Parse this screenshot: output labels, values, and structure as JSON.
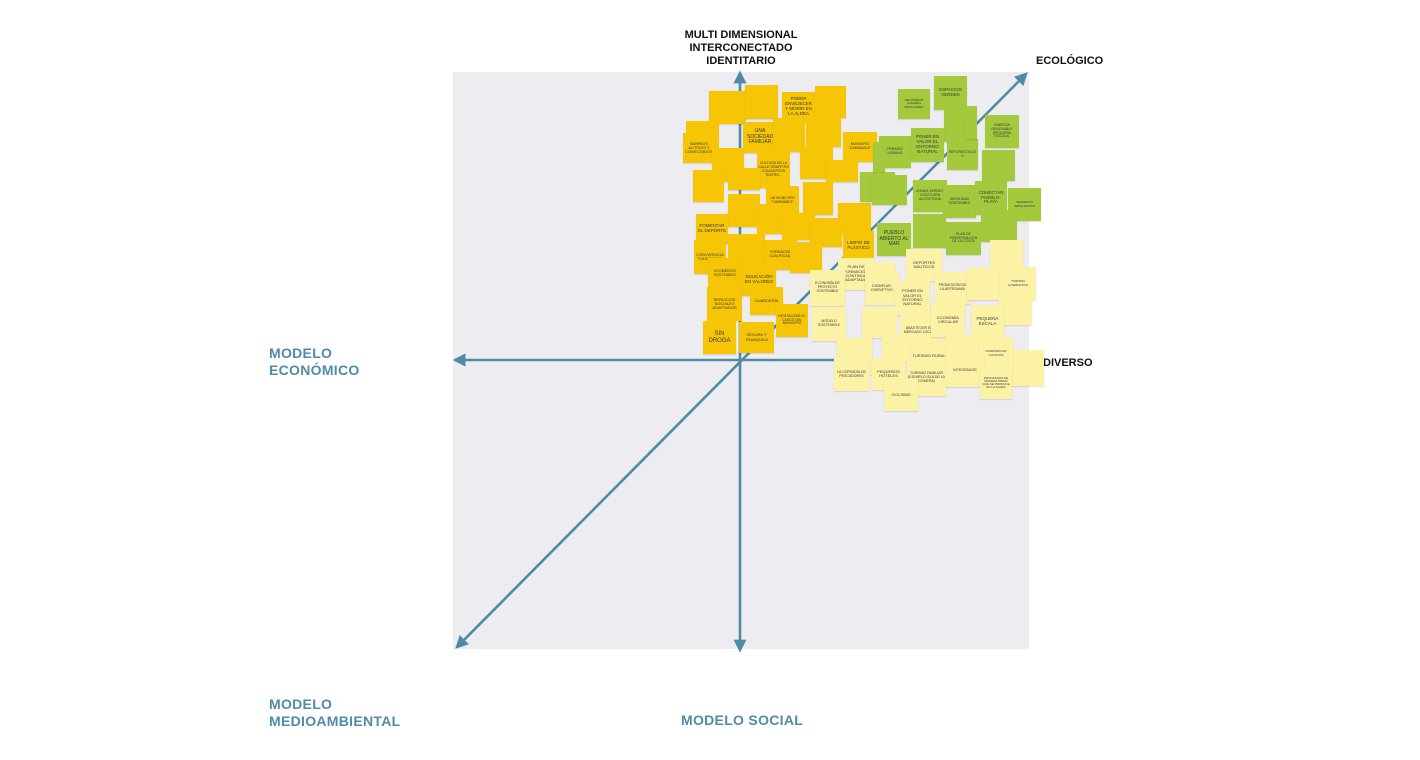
{
  "axes": {
    "top": [
      "MULTI DIMENSIONAL",
      "INTERCONECTADO",
      "IDENTITARIO"
    ],
    "top_right": "ECOLÓGICO",
    "right": "DIVERSO",
    "left": [
      "MODELO",
      "ECONÓMICO"
    ],
    "bottom_left": [
      "MODELO",
      "MEDIOAMBIENTAL"
    ],
    "bottom": "MODELO SOCIAL"
  },
  "colors": {
    "axis": "#4f8ba7",
    "yellow_note": "#f6c506",
    "green_note": "#a4c93d",
    "pale_note": "#fbf2a6",
    "board": "#ededf1"
  },
  "notes": {
    "y01": "",
    "y02": "",
    "y03": "PODER ENVEJECER Y MORIR EN LA ALDEA",
    "y04": "",
    "y05": "",
    "y06": "UNA SOCIEDAD FAMILIAR",
    "y07": "",
    "y08": "",
    "y09": "BARRIOS ACTIVOS Y CONECTADOS",
    "y10": "",
    "y11": "",
    "y12": "MUNICIPIO \"CAMINABLE\"",
    "y13": "CULTURA EN LA CALLE GRAFFITIS CONCIERTOS TEATRO...",
    "y14": "",
    "y15": "",
    "y16": "",
    "y17": "",
    "y18": "UN MUNICIPIO \"CAMINABLE\"",
    "y19": "",
    "y20": "",
    "y21": "",
    "y22": "FOMENTAR EL DEPORTE",
    "y23": "",
    "y24": "",
    "y25": "CONVIVENCIA TOLERANCIA",
    "y26": "",
    "y27": "FORMACIÓN CUALIFICADA",
    "y28": "",
    "y29": "ECOMERCIO SOSTENIBLE",
    "y30": "EDUCACIÓN EN VALORES",
    "y31": "SERVICIOS SOCIALES ADAPTADOS",
    "y32": "GUARDERÍA",
    "y33": "REVITALIZAR EL CASCO DEL MUNICIPIO",
    "y34": "SIN DROGA",
    "y35": "SEGURA Y TRANQUILA",
    "y36": "LIMPIO DE PLÁSTICO",
    "g01": "ESPACIOS VERDES",
    "g02": "RECUPERAR LUGARES SINGULARES",
    "g03": "",
    "g04": "ENERGÍA RENOVABLE (PEQUEÑA ESCALA)",
    "g05": "PONER EN VALOR EL ENTORNO NATURAL",
    "g06": "PARAÍSO URBANO",
    "g07": "",
    "g08": "REFORESTACIÓN",
    "g09": "",
    "g10": "",
    "g11": "",
    "g12": "ZONAS VERDES CON FLORA AUTÓCTONA",
    "g13": "MOVILIDAD SOSTENIBLE",
    "g14": "CONECTAR PUEBLO-PLAYA",
    "g15": "SENDEROS SEÑALIZADOS",
    "g16": "",
    "g17": "PUEBLO ABIERTO AL MAR",
    "g18": "",
    "g19": "PLAN DE PRESERVACIÓN DE LA COSTA",
    "g20": "",
    "p01": "",
    "p02": "PLAN DE FORMACIÓN CONTINUA ADAPTADO",
    "p03": "ECONOMÍA DE PROYECTO SOSTENIBLE",
    "p04": "DEPORTES NÁUTICOS",
    "p05": "",
    "p06": "EJEMPLAR, DISRUPTIVO",
    "p07": "PROMOCIÓN DE LA ARTESANÍA",
    "p08": "",
    "p09": "TURISMO ALTERNATIVO",
    "p10": "PONER EN VALOR EL ENTORNO NATURAL",
    "p11": "",
    "p12": "MODELO SOSTENIBLE",
    "p13": "",
    "p14": "ABASTECER EL MERCADO LOCAL",
    "p15": "ECONOMÍA CIRCULAR",
    "p16": "PEQUEÑA ESCALA",
    "p17": "",
    "p18": "",
    "p19": "TURISMO RURAL",
    "p20": "",
    "p21": "",
    "p22": "DIVERSIFICAR CULTIVOS",
    "p23": "",
    "p24": "LA COFRADÍA DE PESCADORES",
    "p25": "PEQUEÑOS HOTELES",
    "p26": "TURISMO FAMILIAR (EJEMPLO ISLA DE LA GOMERA)",
    "p27": "INTEGRADOR",
    "p28": "PROCESADO DE MATERIA PRIMA QUE SE PRODUCE EN LA ALDEA",
    "p29": "CICLISMO"
  }
}
